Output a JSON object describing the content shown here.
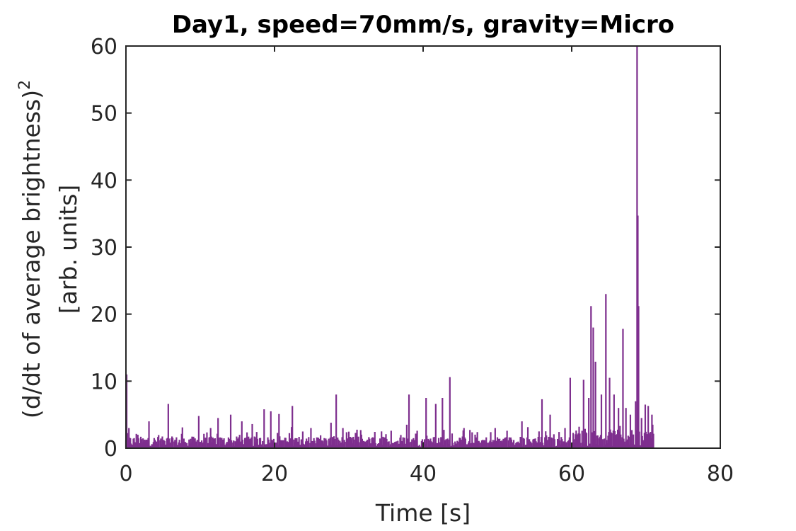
{
  "chart_data": {
    "type": "bar",
    "title": "Day1, speed=70mm/s, gravity=Micro",
    "xlabel": "Time [s]",
    "ylabel_line1": "(d/dt of average brightness)",
    "ylabel_superscript": "2",
    "ylabel_line2": "[arb. units]",
    "xlim": [
      0,
      80
    ],
    "ylim": [
      0,
      60
    ],
    "xticks": [
      "0",
      "20",
      "40",
      "60",
      "80"
    ],
    "yticks": [
      "0",
      "10",
      "20",
      "30",
      "40",
      "50",
      "60"
    ],
    "grid": false,
    "legend": "none",
    "color": "#7E2F8E",
    "series": [
      {
        "x": [
          0.1,
          0.4,
          1.6,
          3.1,
          5.7,
          7.6,
          9.8,
          11.4,
          12.4,
          14.1,
          15.6,
          17.0,
          18.6,
          19.5,
          20.6,
          22.4,
          24.9,
          27.6,
          28.3,
          29.2,
          31.6,
          34.4,
          35.7,
          37.8,
          38.1,
          39.2,
          40.4,
          41.7,
          42.6,
          43.6,
          45.5,
          47.3,
          49.7,
          51.3,
          53.3,
          55.6,
          56.0,
          57.1,
          59.1,
          59.8,
          61.0,
          61.6,
          62.3,
          62.6,
          62.9,
          63.2,
          64.0,
          64.6,
          65.1,
          65.7,
          66.3,
          66.9,
          67.3,
          67.9,
          68.6,
          68.8,
          68.9,
          69.0,
          69.4,
          69.9,
          70.3,
          70.8
        ],
        "y": [
          11.0,
          3.0,
          2.0,
          4.0,
          6.6,
          3.1,
          4.8,
          3.0,
          4.5,
          5.0,
          4.0,
          3.6,
          5.8,
          5.5,
          5.1,
          6.3,
          3.0,
          3.8,
          8.0,
          3.0,
          2.7,
          2.5,
          2.6,
          3.5,
          8.0,
          2.6,
          7.5,
          6.6,
          7.5,
          10.6,
          3.0,
          2.4,
          3.0,
          2.6,
          4.0,
          2.5,
          7.3,
          5.0,
          3.0,
          10.5,
          3.2,
          10.2,
          7.5,
          21.2,
          18.0,
          12.9,
          8.0,
          23.0,
          10.5,
          8.0,
          6.0,
          17.8,
          6.0,
          5.0,
          7.0,
          60.0,
          34.7,
          21.2,
          4.5,
          6.5,
          6.3,
          5.0
        ]
      }
    ]
  }
}
